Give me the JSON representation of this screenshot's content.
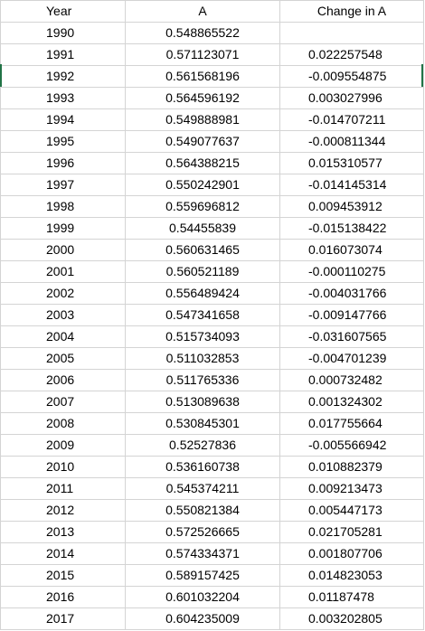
{
  "columns": {
    "year": "Year",
    "a": "A",
    "change": "Change in A"
  },
  "rows": [
    {
      "year": "1990",
      "a": "0.548865522",
      "change": ""
    },
    {
      "year": "1991",
      "a": "0.571123071",
      "change": "0.022257548"
    },
    {
      "year": "1992",
      "a": "0.561568196",
      "change": "-0.009554875"
    },
    {
      "year": "1993",
      "a": "0.564596192",
      "change": "0.003027996"
    },
    {
      "year": "1994",
      "a": "0.549888981",
      "change": "-0.014707211"
    },
    {
      "year": "1995",
      "a": "0.549077637",
      "change": "-0.000811344"
    },
    {
      "year": "1996",
      "a": "0.564388215",
      "change": "0.015310577"
    },
    {
      "year": "1997",
      "a": "0.550242901",
      "change": "-0.014145314"
    },
    {
      "year": "1998",
      "a": "0.559696812",
      "change": "0.009453912"
    },
    {
      "year": "1999",
      "a": "0.54455839",
      "change": "-0.015138422"
    },
    {
      "year": "2000",
      "a": "0.560631465",
      "change": "0.016073074"
    },
    {
      "year": "2001",
      "a": "0.560521189",
      "change": "-0.000110275"
    },
    {
      "year": "2002",
      "a": "0.556489424",
      "change": "-0.004031766"
    },
    {
      "year": "2003",
      "a": "0.547341658",
      "change": "-0.009147766"
    },
    {
      "year": "2004",
      "a": "0.515734093",
      "change": "-0.031607565"
    },
    {
      "year": "2005",
      "a": "0.511032853",
      "change": "-0.004701239"
    },
    {
      "year": "2006",
      "a": "0.511765336",
      "change": "0.000732482"
    },
    {
      "year": "2007",
      "a": "0.513089638",
      "change": "0.001324302"
    },
    {
      "year": "2008",
      "a": "0.530845301",
      "change": "0.017755664"
    },
    {
      "year": "2009",
      "a": "0.52527836",
      "change": "-0.005566942"
    },
    {
      "year": "2010",
      "a": "0.536160738",
      "change": "0.010882379"
    },
    {
      "year": "2011",
      "a": "0.545374211",
      "change": "0.009213473"
    },
    {
      "year": "2012",
      "a": "0.550821384",
      "change": "0.005447173"
    },
    {
      "year": "2013",
      "a": "0.572526665",
      "change": "0.021705281"
    },
    {
      "year": "2014",
      "a": "0.574334371",
      "change": "0.001807706"
    },
    {
      "year": "2015",
      "a": "0.589157425",
      "change": "0.014823053"
    },
    {
      "year": "2016",
      "a": "0.601032204",
      "change": "0.01187478"
    },
    {
      "year": "2017",
      "a": "0.604235009",
      "change": "0.003202805"
    }
  ],
  "colors": {
    "gridline": "#d4d4d4",
    "selection": "#217346",
    "text": "#000000"
  }
}
